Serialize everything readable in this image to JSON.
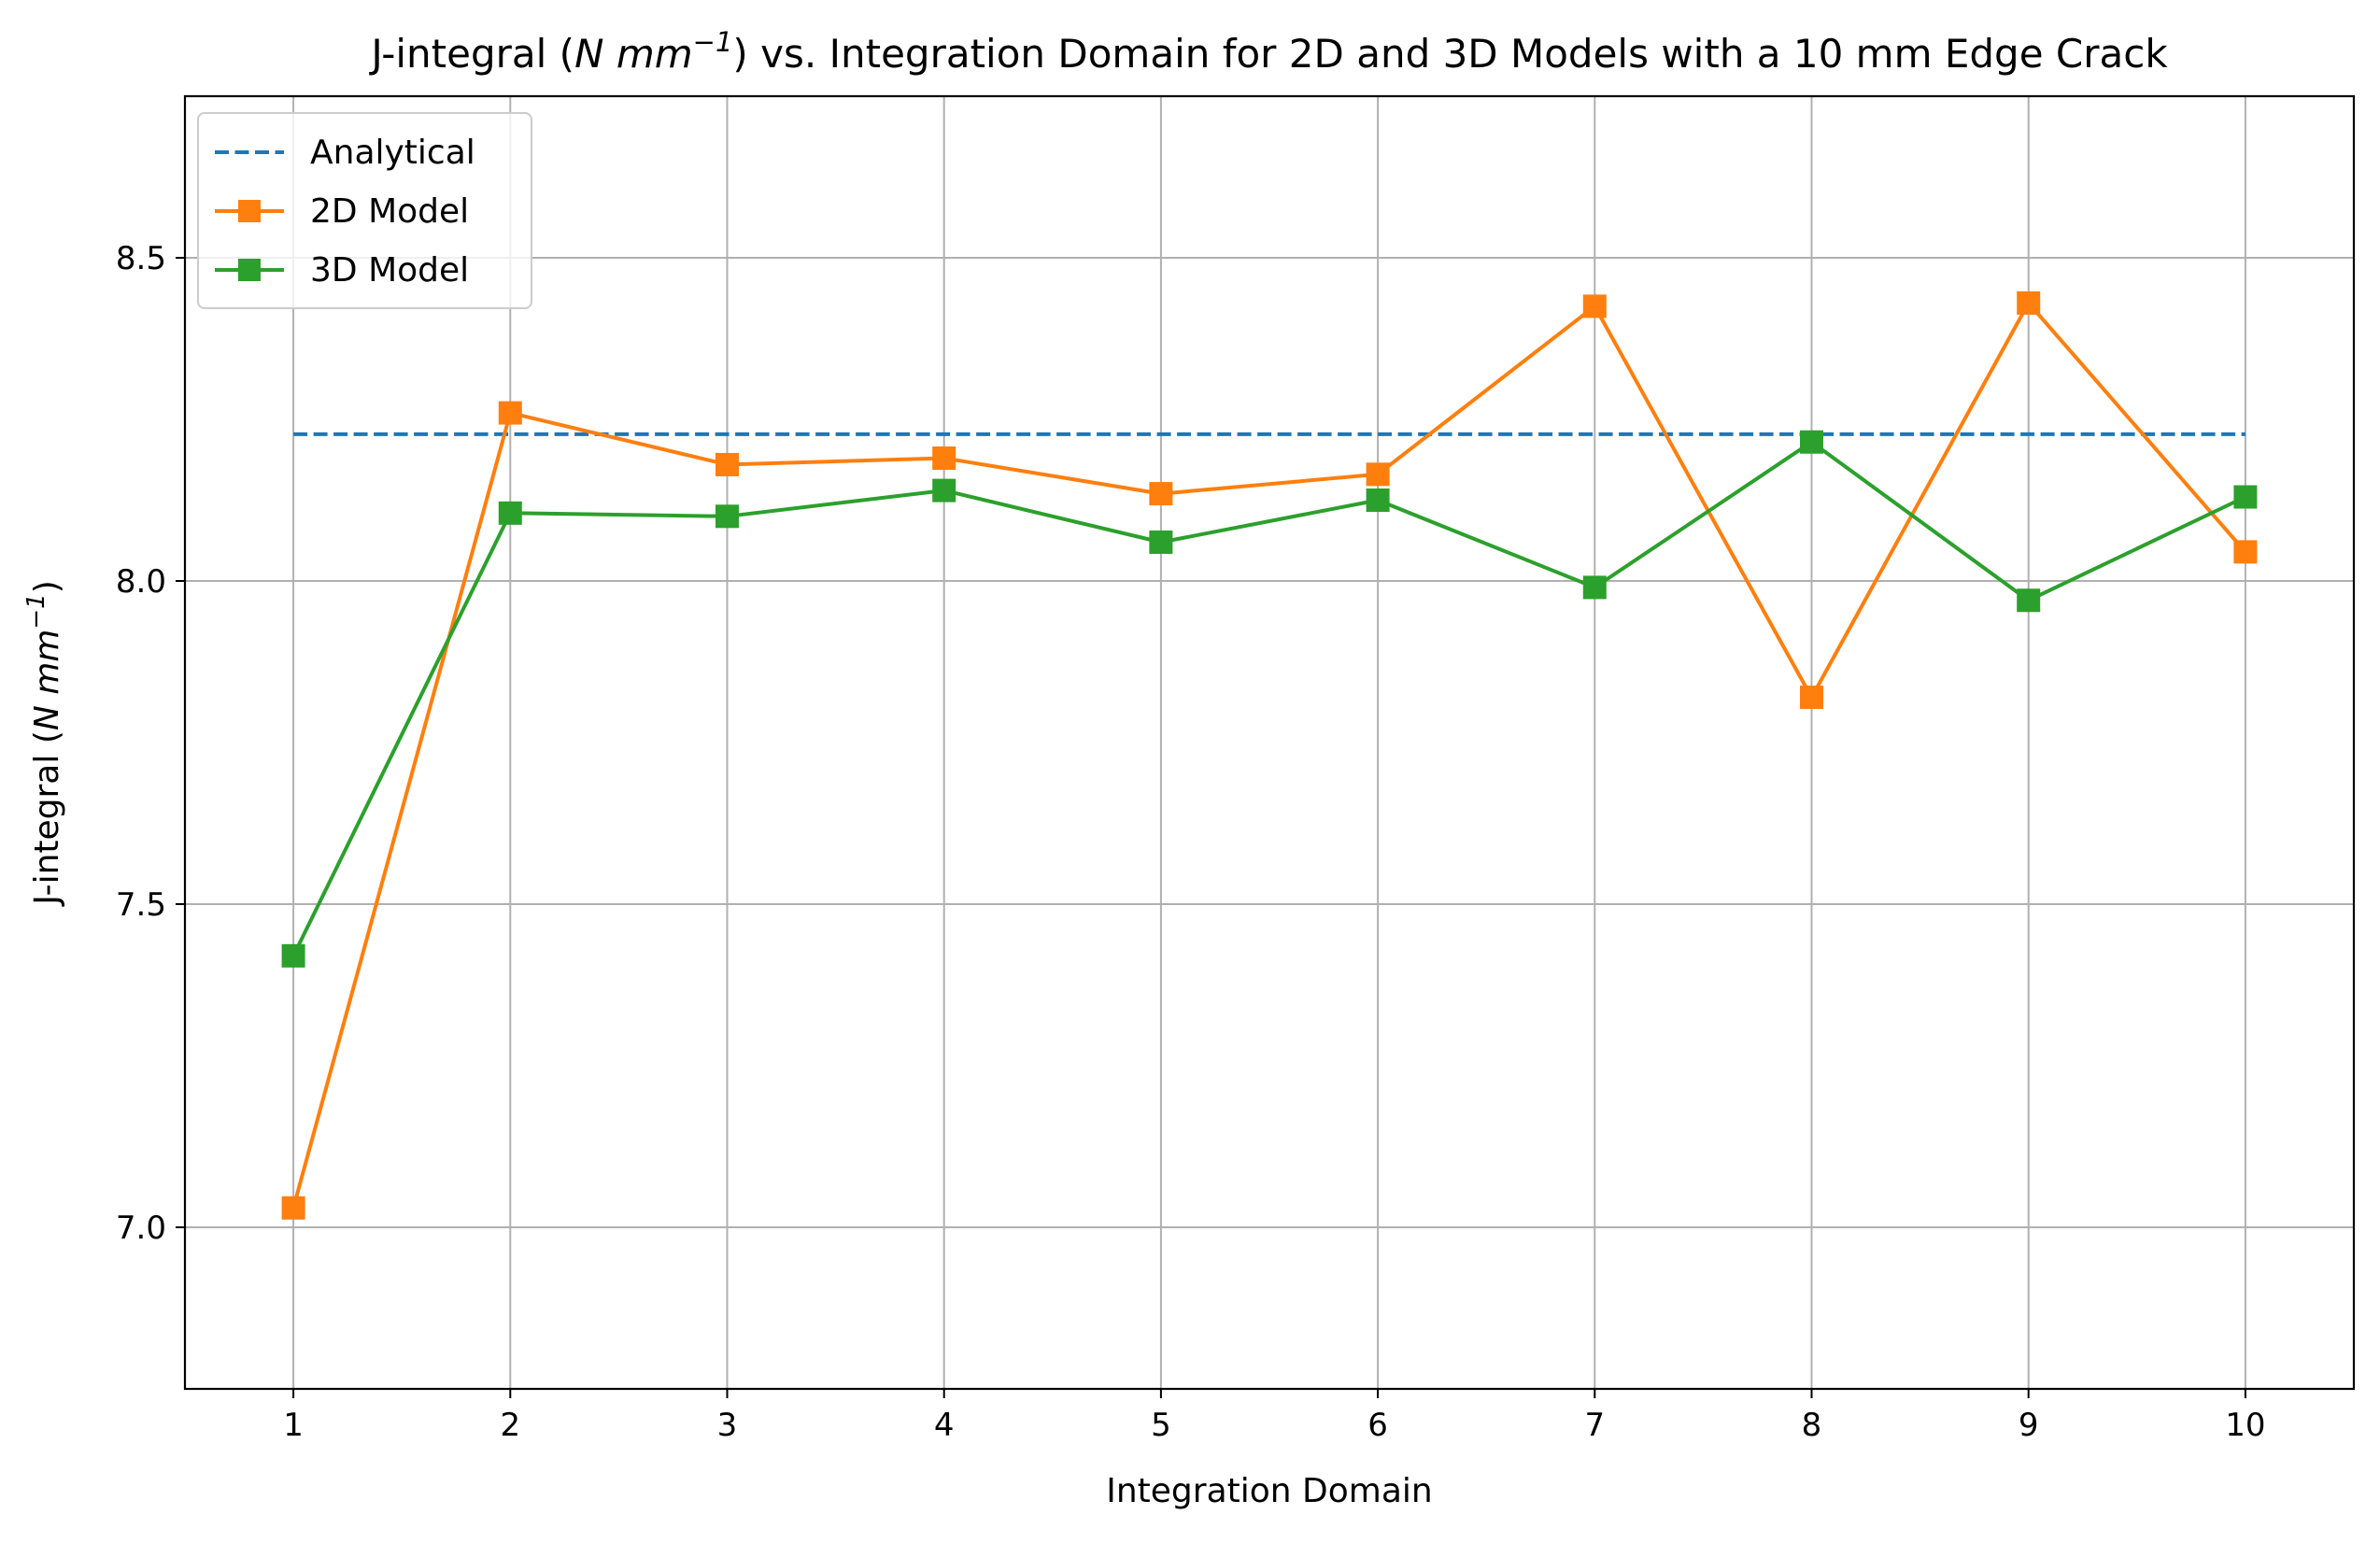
{
  "chart_data": {
    "type": "line",
    "title_parts": [
      "J-integral (",
      "N mm",
      "−1",
      ") vs. Integration Domain for 2D and 3D Models with a 10 mm Edge Crack"
    ],
    "xlabel": "Integration Domain",
    "ylabel_parts": [
      "J-integral (",
      "N mm",
      "−1",
      ")"
    ],
    "x": [
      1,
      2,
      3,
      4,
      5,
      6,
      7,
      8,
      9,
      10
    ],
    "x_tick_labels": [
      "1",
      "2",
      "3",
      "4",
      "5",
      "6",
      "7",
      "8",
      "9",
      "10"
    ],
    "y_ticks": [
      7.0,
      7.5,
      8.0,
      8.5
    ],
    "y_tick_labels": [
      "7.0",
      "7.5",
      "8.0",
      "8.5"
    ],
    "xlim": [
      0.5,
      10.5
    ],
    "ylim": [
      6.75,
      8.75
    ],
    "grid": true,
    "legend_position": "top-left",
    "series": [
      {
        "name": "Analytical",
        "style": "dashed",
        "marker": "none",
        "color": "#1f77b4",
        "values": [
          8.227,
          8.227,
          8.227,
          8.227,
          8.227,
          8.227,
          8.227,
          8.227,
          8.227,
          8.227
        ]
      },
      {
        "name": "2D Model",
        "style": "solid",
        "marker": "square",
        "color": "#ff7f0e",
        "values": [
          7.03,
          8.26,
          8.18,
          8.19,
          8.135,
          8.165,
          8.425,
          7.82,
          8.43,
          8.045
        ]
      },
      {
        "name": "3D Model",
        "style": "solid",
        "marker": "square",
        "color": "#2ca02c",
        "values": [
          7.42,
          8.105,
          8.1,
          8.14,
          8.06,
          8.125,
          7.99,
          8.215,
          7.97,
          8.13
        ]
      }
    ]
  }
}
